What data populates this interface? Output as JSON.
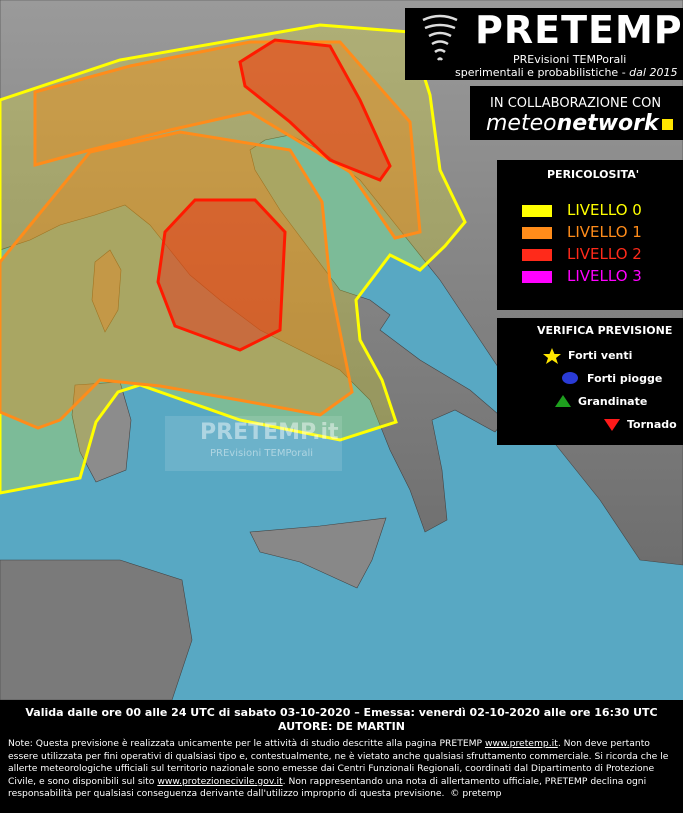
{
  "header": {
    "title": "PRETEMP",
    "subtitle": "PREvisioni TEMPorali",
    "tagline": "sperimentali e probabilistiche - ",
    "since": "dal 2015"
  },
  "collaboration": {
    "label": "IN COLLABORAZIONE CON",
    "partner_a": "meteo",
    "partner_b": "network"
  },
  "legend": {
    "title": "PERICOLOSITA'",
    "levels": [
      "LIVELLO 0",
      "LIVELLO 1",
      "LIVELLO 2",
      "LIVELLO 3"
    ]
  },
  "verification": {
    "title": "VERIFICA PREVISIONE",
    "items": [
      "Forti venti",
      "Forti piogge",
      "Grandinate",
      "Tornado"
    ]
  },
  "watermark": {
    "title": "PRETEMP.it",
    "subtitle": "PREvisioni TEMPorali"
  },
  "footer": {
    "validity": "Valida dalle ore 00 alle 24 UTC di sabato 03-10-2020 – Emessa: venerdì 02-10-2020 alle ore 16:30 UTC",
    "author": "AUTORE: DE MARTIN",
    "note": [
      "Note: Questa previsione è realizzata unicamente per le attività di studio descritte alla pagina PRETEMP ",
      "www.pretemp.it",
      ". Non deve pertanto essere utilizzata per fini operativi di qualsiasi tipo e, contestualmente, ne è vietato anche qualsiasi sfruttamento commerciale. Si ricorda che le allerte meteorologiche ufficiali sul territorio nazionale sono emesse dai Centri Funzionali Regionali, coordinati dal Dipartimento di Protezione Civile, e sono disponibili sul sito ",
      "www.protezionecivile.gov.it",
      ". Non rappresentando una nota di allertamento ufficiale, PRETEMP declina ogni responsabilità per qualsiasi conseguenza derivante dall'utilizzo improprio di questa previsione.  © pretemp"
    ]
  }
}
